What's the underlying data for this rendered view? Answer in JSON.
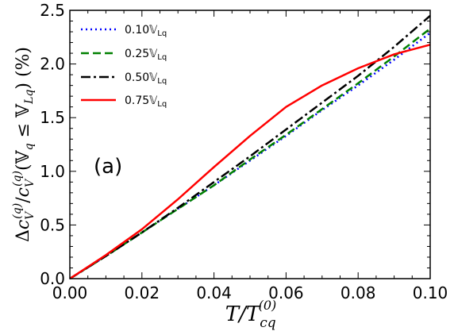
{
  "chart_data": {
    "type": "line",
    "panel_label": "(a)",
    "xlabel": "T/T_cq^(0)",
    "xlabel_parts": {
      "main": "T/T",
      "sub": "cq",
      "sup": "(0)"
    },
    "ylabel": "Δc_V^(q)/c_V^(q)(𝕍_q ≤ 𝕍_Lq) (%)",
    "ylabel_parts": {
      "delta": "Δ",
      "c": "c",
      "v_sub": "V",
      "q_sup": "(q)",
      "slash": "/",
      "c2": "c",
      "v_sub2": "V",
      "q_sup2": "(q)",
      "paren_open": "(",
      "vq": "𝕍",
      "q_sub": "q",
      "le": " ≤ ",
      "vlq": "𝕍",
      "lq_sub": "Lq",
      "paren_close": ")",
      "unit": " (%)"
    },
    "xlim": [
      0.0,
      0.1
    ],
    "ylim": [
      0.0,
      2.5
    ],
    "xticks": [
      "0.00",
      "0.02",
      "0.04",
      "0.06",
      "0.08",
      "0.10"
    ],
    "yticks": [
      "0.0",
      "0.5",
      "1.0",
      "1.5",
      "2.0",
      "2.5"
    ],
    "legend_position": "top-left",
    "grid": false,
    "series": [
      {
        "name": "0.10𝕍Lq",
        "label_main": "0.10𝕍",
        "label_sub": "Lq",
        "color": "#0000ff",
        "dash": "dotted",
        "x": [
          0.0,
          0.01,
          0.02,
          0.03,
          0.04,
          0.05,
          0.06,
          0.07,
          0.08,
          0.09,
          0.1
        ],
        "y": [
          0.0,
          0.21,
          0.43,
          0.65,
          0.87,
          1.1,
          1.33,
          1.57,
          1.8,
          2.04,
          2.29
        ]
      },
      {
        "name": "0.25𝕍Lq",
        "label_main": "0.25𝕍",
        "label_sub": "Lq",
        "color": "#008000",
        "dash": "dashed",
        "x": [
          0.0,
          0.01,
          0.02,
          0.03,
          0.04,
          0.05,
          0.06,
          0.07,
          0.08,
          0.09,
          0.1
        ],
        "y": [
          0.0,
          0.21,
          0.43,
          0.65,
          0.87,
          1.11,
          1.34,
          1.58,
          1.82,
          2.07,
          2.33
        ]
      },
      {
        "name": "0.50𝕍Lq",
        "label_main": "0.50𝕍",
        "label_sub": "Lq",
        "color": "#000000",
        "dash": "dashdot",
        "x": [
          0.0,
          0.01,
          0.02,
          0.03,
          0.04,
          0.05,
          0.06,
          0.07,
          0.08,
          0.09,
          0.1
        ],
        "y": [
          0.0,
          0.21,
          0.43,
          0.66,
          0.9,
          1.14,
          1.39,
          1.64,
          1.89,
          2.16,
          2.45
        ]
      },
      {
        "name": "0.75𝕍Lq",
        "label_main": "0.75𝕍",
        "label_sub": "Lq",
        "color": "#ff0000",
        "dash": "solid",
        "x": [
          0.0,
          0.01,
          0.02,
          0.03,
          0.04,
          0.05,
          0.06,
          0.07,
          0.08,
          0.09,
          0.1
        ],
        "y": [
          0.0,
          0.22,
          0.46,
          0.74,
          1.04,
          1.33,
          1.6,
          1.8,
          1.96,
          2.09,
          2.18
        ]
      }
    ]
  }
}
